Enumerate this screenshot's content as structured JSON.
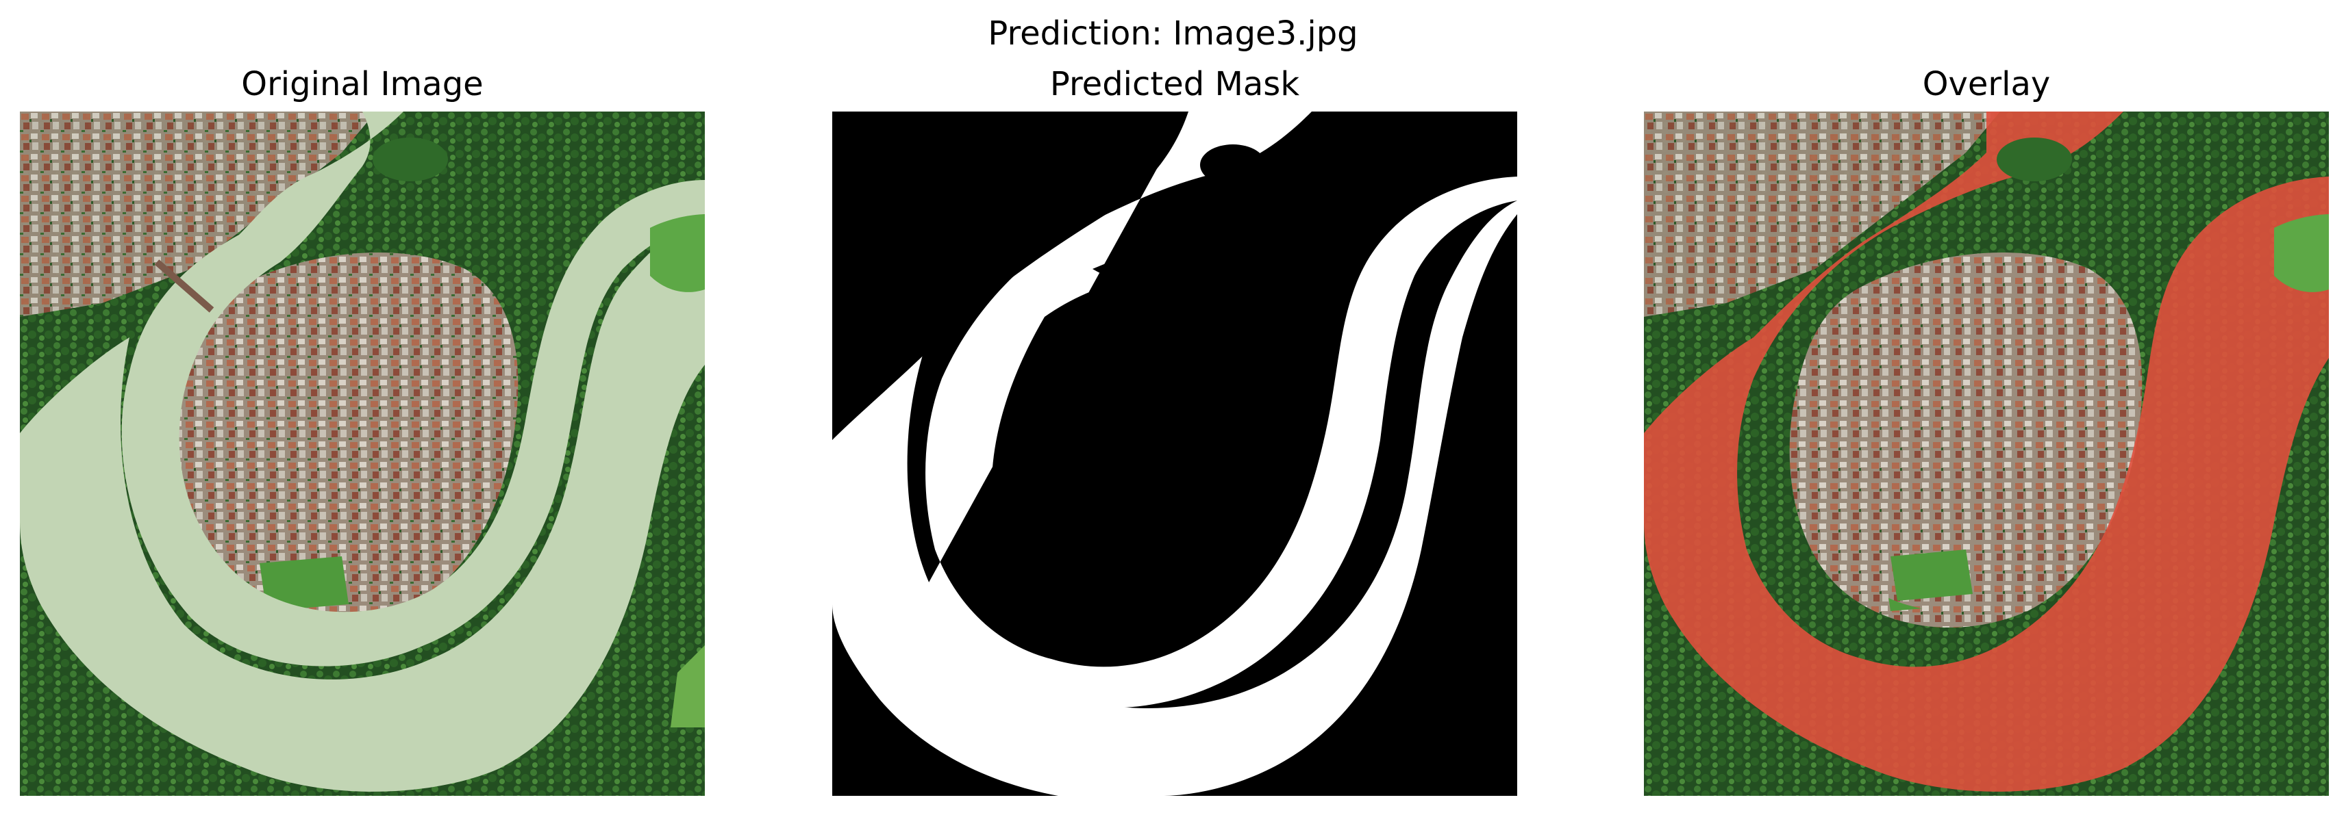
{
  "figure": {
    "suptitle": "Prediction: Image3.jpg"
  },
  "panels": [
    {
      "title": "Original Image",
      "image": "aerial-photo-river-bend-town"
    },
    {
      "title": "Predicted Mask",
      "image": "binary-river-mask"
    },
    {
      "title": "Overlay",
      "image": "aerial-photo-with-red-river-overlay"
    }
  ],
  "colors": {
    "river_water": "#c2d5b4",
    "forest_dark": "#1f4d1f",
    "forest_mid": "#3e7d33",
    "town_roofs": "#a8876f",
    "mask_background": "#000000",
    "mask_foreground": "#ffffff",
    "overlay_red": "#e0503d"
  }
}
